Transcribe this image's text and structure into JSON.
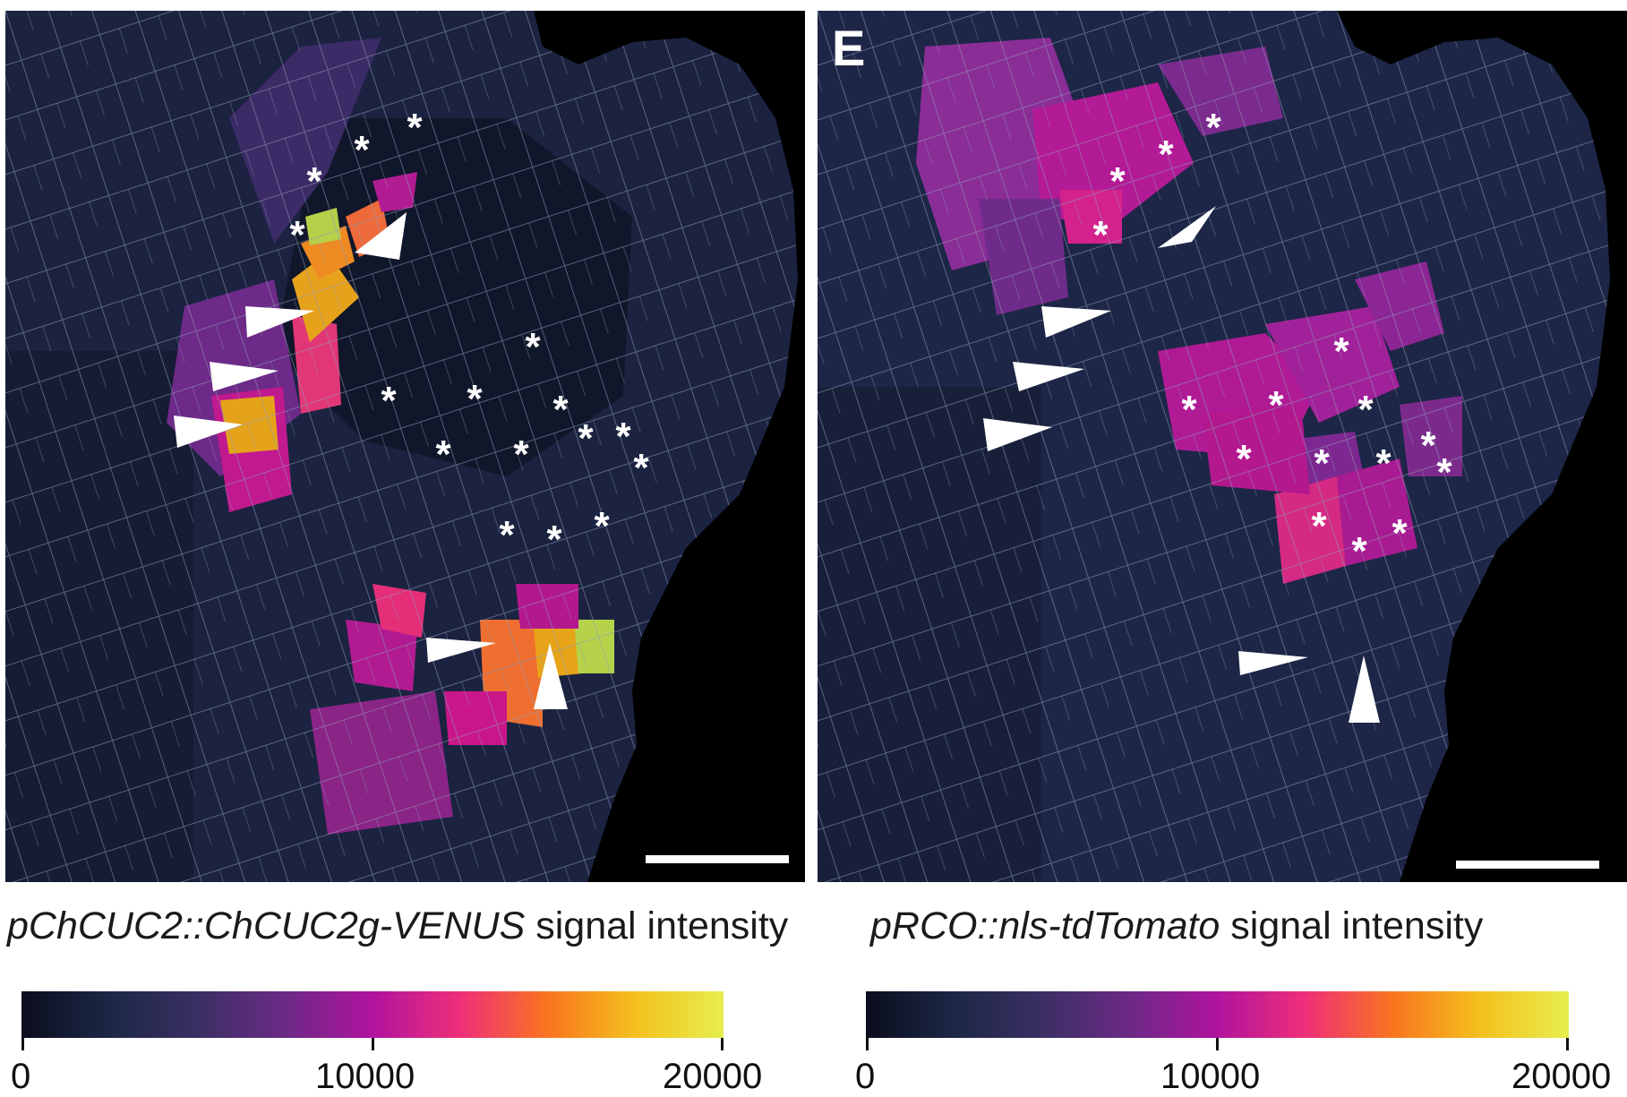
{
  "panels": [
    {
      "id": "left",
      "label": "",
      "scale_bar": true,
      "legend_title_italic": "pChCUC2::ChCUC2g-VENUS",
      "legend_title_rest": " signal intensity"
    },
    {
      "id": "right",
      "label": "E",
      "scale_bar": true,
      "legend_title_italic": "pRCO::nls-tdTomato",
      "legend_title_rest": " signal intensity"
    }
  ],
  "colorbar": {
    "min_label": "0",
    "mid_label": "10000",
    "max_label": "20000",
    "min": 0,
    "max": 20000,
    "colors": [
      "#0b0d1e",
      "#1c2745",
      "#3a2f63",
      "#6b2a86",
      "#b0139e",
      "#ef2f79",
      "#f9751f",
      "#f4c11d",
      "#e6ee4e"
    ]
  },
  "annotations": {
    "asterisk": "*"
  }
}
